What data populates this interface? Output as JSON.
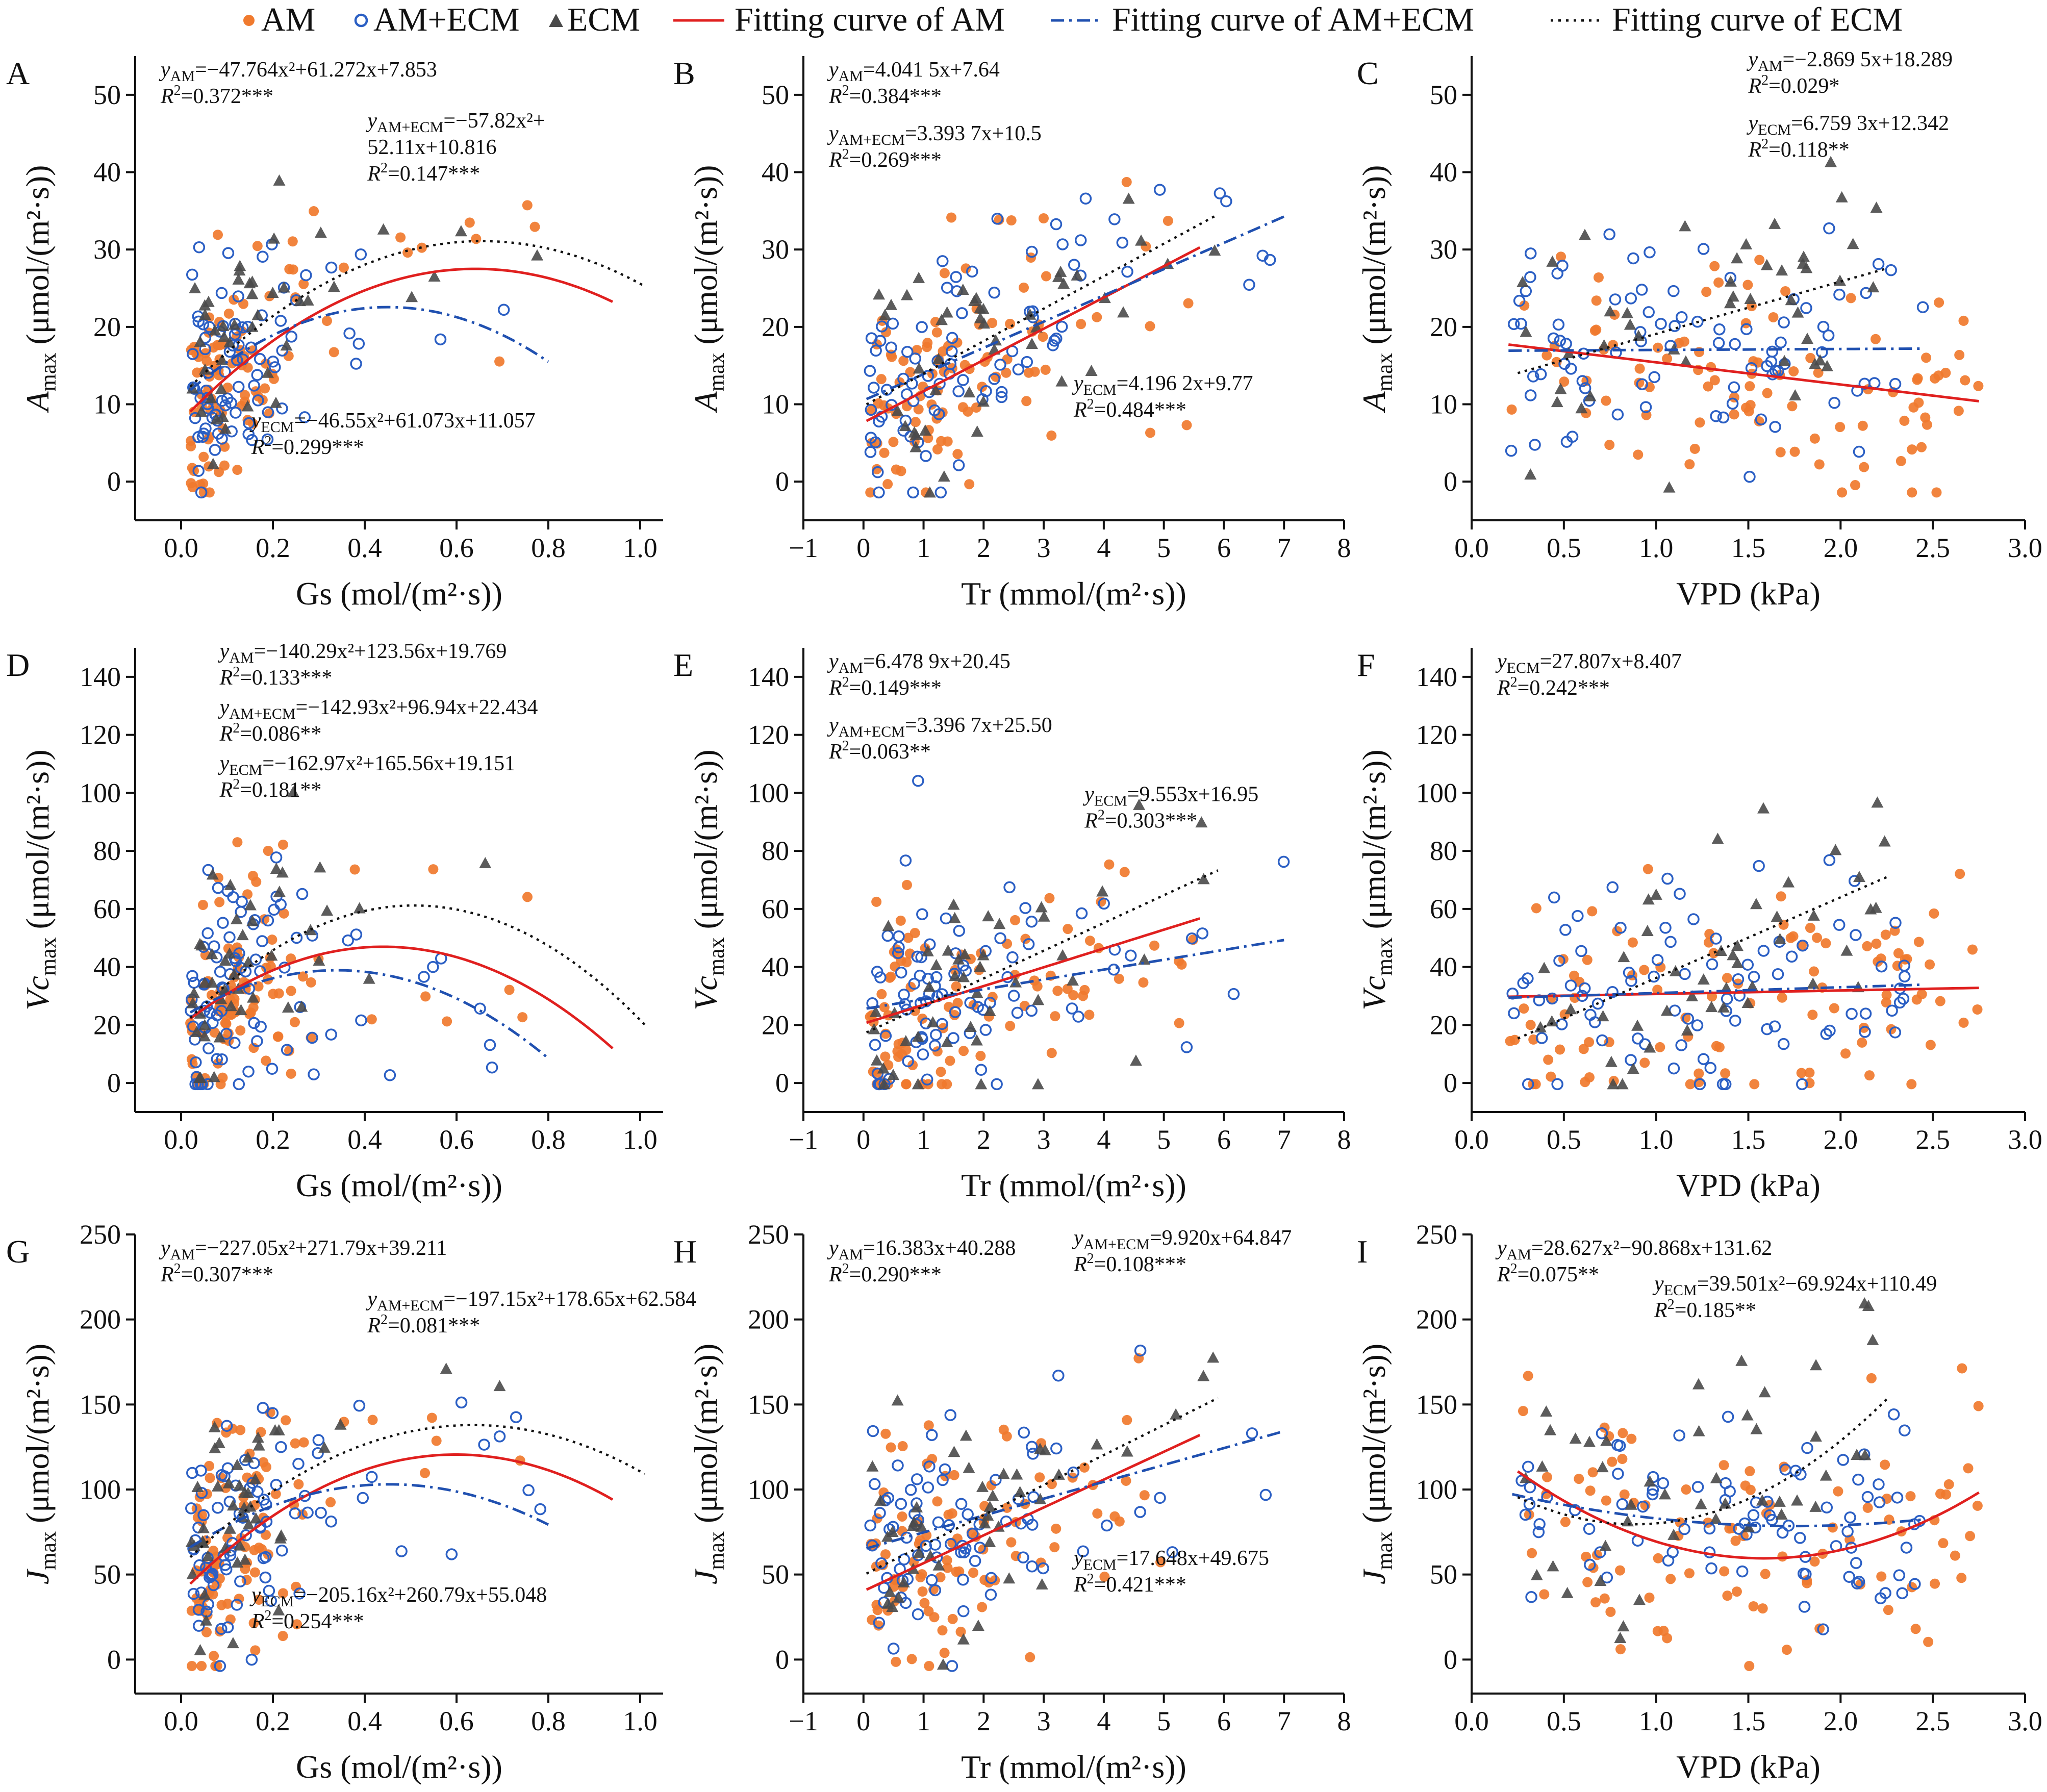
{
  "legend": {
    "am": "AM",
    "amecm": "AM+ECM",
    "ecm": "ECM",
    "fit_am": "Fitting curve of AM",
    "fit_amecm": "Fitting curve of AM+ECM",
    "fit_ecm": "Fitting curve of ECM"
  },
  "colors": {
    "am": "#f07a2e",
    "amecm": "#2b5fc4",
    "ecm": "#4a4a4a",
    "fit_am": "#e0201f",
    "fit_amecm": "#2050b0",
    "fit_ecm": "#111111"
  },
  "chart_data": [
    {
      "panel": "A",
      "type": "scatter",
      "xlabel": "Gs (mol/(m²·s))",
      "ylabel_base": "A",
      "ylabel_sub": "max",
      "ylabel_rest": " (μmol/(m²·s))",
      "xlim": [
        -0.1,
        1.05
      ],
      "ylim": [
        -5,
        55
      ],
      "xticks": [
        0.0,
        0.2,
        0.4,
        0.6,
        0.8,
        1.0
      ],
      "xtick_labels": [
        "0.0",
        "0.2",
        "0.4",
        "0.6",
        "0.8",
        "1.0"
      ],
      "yticks": [
        0,
        10,
        20,
        30,
        40,
        50
      ],
      "ytick_labels": [
        "0",
        "10",
        "20",
        "30",
        "40",
        "50"
      ],
      "fits": [
        {
          "group": "am",
          "kind": "poly",
          "coef": [
            7.853,
            61.272,
            -47.764
          ],
          "range": [
            0.02,
            0.94
          ]
        },
        {
          "group": "amecm",
          "kind": "poly",
          "coef": [
            10.816,
            52.11,
            -57.82
          ],
          "range": [
            0.02,
            0.8
          ]
        },
        {
          "group": "ecm",
          "kind": "poly",
          "coef": [
            11.057,
            61.073,
            -46.55
          ],
          "range": [
            0.02,
            1.01
          ]
        }
      ],
      "equations": [
        {
          "group": "AM",
          "sub": "AM",
          "rhs": "=−47.764x²+61.272x+7.853",
          "r2": "=0.372***",
          "pos": "top-left"
        },
        {
          "group": "AM+ECM",
          "sub": "AM+ECM",
          "rhs": "=−57.82x²+",
          "rhs2": "52.11x+10.816",
          "r2": "=0.147***",
          "pos": "upper-right"
        },
        {
          "group": "ECM",
          "sub": "ECM",
          "rhs": "=−46.55x²+61.073x+11.057",
          "r2": "=0.299***",
          "pos": "bottom"
        }
      ]
    },
    {
      "panel": "B",
      "type": "scatter",
      "xlabel": "Tr (mmol/(m²·s))",
      "ylabel_base": "A",
      "ylabel_sub": "max",
      "ylabel_rest": " (μmol/(m²·s))",
      "xlim": [
        -1,
        8
      ],
      "ylim": [
        -5,
        55
      ],
      "xticks": [
        -1,
        0,
        1,
        2,
        3,
        4,
        5,
        6,
        7,
        8
      ],
      "xtick_labels": [
        "−1",
        "0",
        "1",
        "2",
        "3",
        "4",
        "5",
        "6",
        "7",
        "8"
      ],
      "yticks": [
        0,
        10,
        20,
        30,
        40,
        50
      ],
      "ytick_labels": [
        "0",
        "10",
        "20",
        "30",
        "40",
        "50"
      ],
      "fits": [
        {
          "group": "am",
          "kind": "linear",
          "coef": [
            7.64,
            4.0415
          ],
          "range": [
            0.05,
            5.6
          ]
        },
        {
          "group": "amecm",
          "kind": "linear",
          "coef": [
            10.5,
            3.3937
          ],
          "range": [
            0.05,
            7.0
          ]
        },
        {
          "group": "ecm",
          "kind": "linear",
          "coef": [
            9.77,
            4.1962
          ],
          "range": [
            0.05,
            5.9
          ]
        }
      ],
      "equations": [
        {
          "group": "AM",
          "sub": "AM",
          "rhs": "=4.041 5x+7.64",
          "r2": "=0.384***",
          "pos": "top-left"
        },
        {
          "group": "AM+ECM",
          "sub": "AM+ECM",
          "rhs": "=3.393 7x+10.5",
          "r2": "=0.269***",
          "pos": "top-left-2"
        },
        {
          "group": "ECM",
          "sub": "ECM",
          "rhs": "=4.196 2x+9.77",
          "r2": "=0.484***",
          "pos": "bottom-right"
        }
      ]
    },
    {
      "panel": "C",
      "type": "scatter",
      "xlabel": "VPD (kPa)",
      "ylabel_base": "A",
      "ylabel_sub": "max",
      "ylabel_rest": " (μmol/(m²·s))",
      "xlim": [
        0.0,
        3.0
      ],
      "ylim": [
        -5,
        55
      ],
      "xticks": [
        0.0,
        0.5,
        1.0,
        1.5,
        2.0,
        2.5,
        3.0
      ],
      "xtick_labels": [
        "0.0",
        "0.5",
        "1.0",
        "1.5",
        "2.0",
        "2.5",
        "3.0"
      ],
      "yticks": [
        0,
        10,
        20,
        30,
        40,
        50
      ],
      "ytick_labels": [
        "0",
        "10",
        "20",
        "30",
        "40",
        "50"
      ],
      "fits": [
        {
          "group": "am",
          "kind": "linear",
          "coef": [
            18.289,
            -2.8695
          ],
          "range": [
            0.2,
            2.75
          ]
        },
        {
          "group": "amecm",
          "kind": "linear",
          "coef": [
            16.9,
            0.12
          ],
          "range": [
            0.2,
            2.45
          ]
        },
        {
          "group": "ecm",
          "kind": "linear",
          "coef": [
            12.342,
            6.7593
          ],
          "range": [
            0.25,
            2.25
          ]
        }
      ],
      "equations": [
        {
          "group": "AM",
          "sub": "AM",
          "rhs": "=−2.869 5x+18.289",
          "r2": "=0.029*",
          "pos": "top-right"
        },
        {
          "group": "ECM",
          "sub": "ECM",
          "rhs": "=6.759 3x+12.342",
          "r2": "=0.118**",
          "pos": "top-right-2"
        }
      ]
    },
    {
      "panel": "D",
      "type": "scatter",
      "xlabel": "Gs (mol/(m²·s))",
      "ylabel_base": "Vc",
      "ylabel_sub": "max",
      "ylabel_rest": " (μmol/(m²·s))",
      "xlim": [
        -0.1,
        1.05
      ],
      "ylim": [
        -10,
        150
      ],
      "xticks": [
        0.0,
        0.2,
        0.4,
        0.6,
        0.8,
        1.0
      ],
      "xtick_labels": [
        "0.0",
        "0.2",
        "0.4",
        "0.6",
        "0.8",
        "1.0"
      ],
      "yticks": [
        0,
        20,
        40,
        60,
        80,
        100,
        120,
        140
      ],
      "ytick_labels": [
        "0",
        "20",
        "40",
        "60",
        "80",
        "100",
        "120",
        "140"
      ],
      "fits": [
        {
          "group": "am",
          "kind": "poly",
          "coef": [
            19.769,
            123.56,
            -140.29
          ],
          "range": [
            0.02,
            0.94
          ]
        },
        {
          "group": "amecm",
          "kind": "poly",
          "coef": [
            22.434,
            96.94,
            -142.93
          ],
          "range": [
            0.02,
            0.8
          ]
        },
        {
          "group": "ecm",
          "kind": "poly",
          "coef": [
            19.151,
            165.56,
            -162.97
          ],
          "range": [
            0.02,
            1.01
          ]
        }
      ],
      "equations": [
        {
          "group": "AM",
          "sub": "AM",
          "rhs": "=−140.29x²+123.56x+19.769",
          "r2": "=0.133***",
          "pos": "top"
        },
        {
          "group": "AM+ECM",
          "sub": "AM+ECM",
          "rhs": "=−142.93x²+96.94x+22.434",
          "r2": "=0.086**",
          "pos": "top-2"
        },
        {
          "group": "ECM",
          "sub": "ECM",
          "rhs": "=−162.97x²+165.56x+19.151",
          "r2": "=0.181**",
          "pos": "top-3"
        }
      ]
    },
    {
      "panel": "E",
      "type": "scatter",
      "xlabel": "Tr (mmol/(m²·s))",
      "ylabel_base": "Vc",
      "ylabel_sub": "max",
      "ylabel_rest": " (μmol/(m²·s))",
      "xlim": [
        -1,
        8
      ],
      "ylim": [
        -10,
        150
      ],
      "xticks": [
        -1,
        0,
        1,
        2,
        3,
        4,
        5,
        6,
        7,
        8
      ],
      "xtick_labels": [
        "−1",
        "0",
        "1",
        "2",
        "3",
        "4",
        "5",
        "6",
        "7",
        "8"
      ],
      "yticks": [
        0,
        20,
        40,
        60,
        80,
        100,
        120,
        140
      ],
      "ytick_labels": [
        "0",
        "20",
        "40",
        "60",
        "80",
        "100",
        "120",
        "140"
      ],
      "fits": [
        {
          "group": "am",
          "kind": "linear",
          "coef": [
            20.45,
            6.4789
          ],
          "range": [
            0.05,
            5.6
          ]
        },
        {
          "group": "amecm",
          "kind": "linear",
          "coef": [
            25.5,
            3.3967
          ],
          "range": [
            0.05,
            7.0
          ]
        },
        {
          "group": "ecm",
          "kind": "linear",
          "coef": [
            16.95,
            9.553
          ],
          "range": [
            0.05,
            5.9
          ]
        }
      ],
      "equations": [
        {
          "group": "AM",
          "sub": "AM",
          "rhs": "=6.478 9x+20.45",
          "r2": "=0.149***",
          "pos": "top-left"
        },
        {
          "group": "AM+ECM",
          "sub": "AM+ECM",
          "rhs": "=3.396 7x+25.50",
          "r2": "=0.063**",
          "pos": "top-left-2"
        },
        {
          "group": "ECM",
          "sub": "ECM",
          "rhs": "=9.553x+16.95",
          "r2": "=0.303***",
          "pos": "mid-right"
        }
      ]
    },
    {
      "panel": "F",
      "type": "scatter",
      "xlabel": "VPD (kPa)",
      "ylabel_base": "Vc",
      "ylabel_sub": "max",
      "ylabel_rest": " (μmol/(m²·s))",
      "xlim": [
        0.0,
        3.0
      ],
      "ylim": [
        -10,
        150
      ],
      "xticks": [
        0.0,
        0.5,
        1.0,
        1.5,
        2.0,
        2.5,
        3.0
      ],
      "xtick_labels": [
        "0.0",
        "0.5",
        "1.0",
        "1.5",
        "2.0",
        "2.5",
        "3.0"
      ],
      "yticks": [
        0,
        20,
        40,
        60,
        80,
        100,
        120,
        140
      ],
      "ytick_labels": [
        "0",
        "20",
        "40",
        "60",
        "80",
        "100",
        "120",
        "140"
      ],
      "fits": [
        {
          "group": "am",
          "kind": "linear",
          "coef": [
            29.5,
            1.2
          ],
          "range": [
            0.2,
            2.75
          ]
        },
        {
          "group": "amecm",
          "kind": "linear",
          "coef": [
            29.0,
            2.0
          ],
          "range": [
            0.2,
            2.45
          ]
        },
        {
          "group": "ecm",
          "kind": "linear",
          "coef": [
            8.407,
            27.807
          ],
          "range": [
            0.25,
            2.25
          ]
        }
      ],
      "equations": [
        {
          "group": "ECM",
          "sub": "ECM",
          "rhs": "=27.807x+8.407",
          "r2": "=0.242***",
          "pos": "top-left"
        }
      ]
    },
    {
      "panel": "G",
      "type": "scatter",
      "xlabel": "Gs (mol/(m²·s))",
      "ylabel_base": "J",
      "ylabel_sub": "max",
      "ylabel_rest": " (μmol/(m²·s))",
      "xlim": [
        -0.1,
        1.05
      ],
      "ylim": [
        -20,
        250
      ],
      "xticks": [
        0.0,
        0.2,
        0.4,
        0.6,
        0.8,
        1.0
      ],
      "xtick_labels": [
        "0.0",
        "0.2",
        "0.4",
        "0.6",
        "0.8",
        "1.0"
      ],
      "yticks": [
        0,
        50,
        100,
        150,
        200,
        250
      ],
      "ytick_labels": [
        "0",
        "50",
        "100",
        "150",
        "200",
        "250"
      ],
      "fits": [
        {
          "group": "am",
          "kind": "poly",
          "coef": [
            39.211,
            271.79,
            -227.05
          ],
          "range": [
            0.02,
            0.94
          ]
        },
        {
          "group": "amecm",
          "kind": "poly",
          "coef": [
            62.584,
            178.65,
            -197.15
          ],
          "range": [
            0.02,
            0.8
          ]
        },
        {
          "group": "ecm",
          "kind": "poly",
          "coef": [
            55.048,
            260.79,
            -205.16
          ],
          "range": [
            0.02,
            1.01
          ]
        }
      ],
      "equations": [
        {
          "group": "AM",
          "sub": "AM",
          "rhs": "=−227.05x²+271.79x+39.211",
          "r2": "=0.307***",
          "pos": "top-left"
        },
        {
          "group": "AM+ECM",
          "sub": "AM+ECM",
          "rhs": "=−197.15x²+178.65x+62.584",
          "r2": "=0.081***",
          "pos": "upper-right"
        },
        {
          "group": "ECM",
          "sub": "ECM",
          "rhs": "=−205.16x²+260.79x+55.048",
          "r2": "=0.254***",
          "pos": "bottom"
        }
      ]
    },
    {
      "panel": "H",
      "type": "scatter",
      "xlabel": "Tr (mmol/(m²·s))",
      "ylabel_base": "J",
      "ylabel_sub": "max",
      "ylabel_rest": " (μmol/(m²·s))",
      "xlim": [
        -1,
        8
      ],
      "ylim": [
        -20,
        250
      ],
      "xticks": [
        -1,
        0,
        1,
        2,
        3,
        4,
        5,
        6,
        7,
        8
      ],
      "xtick_labels": [
        "−1",
        "0",
        "1",
        "2",
        "3",
        "4",
        "5",
        "6",
        "7",
        "8"
      ],
      "yticks": [
        0,
        50,
        100,
        150,
        200,
        250
      ],
      "ytick_labels": [
        "0",
        "50",
        "100",
        "150",
        "200",
        "250"
      ],
      "fits": [
        {
          "group": "am",
          "kind": "linear",
          "coef": [
            40.288,
            16.383
          ],
          "range": [
            0.05,
            5.6
          ]
        },
        {
          "group": "amecm",
          "kind": "linear",
          "coef": [
            64.847,
            9.92
          ],
          "range": [
            0.05,
            7.0
          ]
        },
        {
          "group": "ecm",
          "kind": "linear",
          "coef": [
            49.675,
            17.648
          ],
          "range": [
            0.05,
            5.9
          ]
        }
      ],
      "equations": [
        {
          "group": "AM",
          "sub": "AM",
          "rhs": "=16.383x+40.288",
          "r2": "=0.290***",
          "pos": "top-left"
        },
        {
          "group": "AM+ECM",
          "sub": "AM+ECM",
          "rhs": "=9.920x+64.847",
          "r2": "=0.108***",
          "pos": "top-right"
        },
        {
          "group": "ECM",
          "sub": "ECM",
          "rhs": "=17.648x+49.675",
          "r2": "=0.421***",
          "pos": "bottom-right"
        }
      ]
    },
    {
      "panel": "I",
      "type": "scatter",
      "xlabel": "VPD (kPa)",
      "ylabel_base": "J",
      "ylabel_sub": "max",
      "ylabel_rest": " (μmol/(m²·s))",
      "xlim": [
        0.0,
        3.0
      ],
      "ylim": [
        -20,
        250
      ],
      "xticks": [
        0.0,
        0.5,
        1.0,
        1.5,
        2.0,
        2.5,
        3.0
      ],
      "xtick_labels": [
        "0.0",
        "0.5",
        "1.0",
        "1.5",
        "2.0",
        "2.5",
        "3.0"
      ],
      "yticks": [
        0,
        50,
        100,
        150,
        200,
        250
      ],
      "ytick_labels": [
        "0",
        "50",
        "100",
        "150",
        "200",
        "250"
      ],
      "fits": [
        {
          "group": "am",
          "kind": "poly",
          "coef": [
            131.62,
            -90.868,
            28.627
          ],
          "range": [
            0.25,
            2.75
          ]
        },
        {
          "group": "amecm",
          "kind": "poly",
          "coef": [
            103,
            -28,
            8
          ],
          "range": [
            0.22,
            2.45
          ]
        },
        {
          "group": "ecm",
          "kind": "poly",
          "coef": [
            110.49,
            -69.924,
            39.501
          ],
          "range": [
            0.25,
            2.25
          ]
        }
      ],
      "equations": [
        {
          "group": "AM",
          "sub": "AM",
          "rhs": "=28.627x²−90.868x+131.62",
          "r2": "=0.075**",
          "pos": "top-left"
        },
        {
          "group": "ECM",
          "sub": "ECM",
          "rhs": "=39.501x²−69.924x+110.49",
          "r2": "=0.185**",
          "pos": "top-mid"
        }
      ]
    }
  ]
}
